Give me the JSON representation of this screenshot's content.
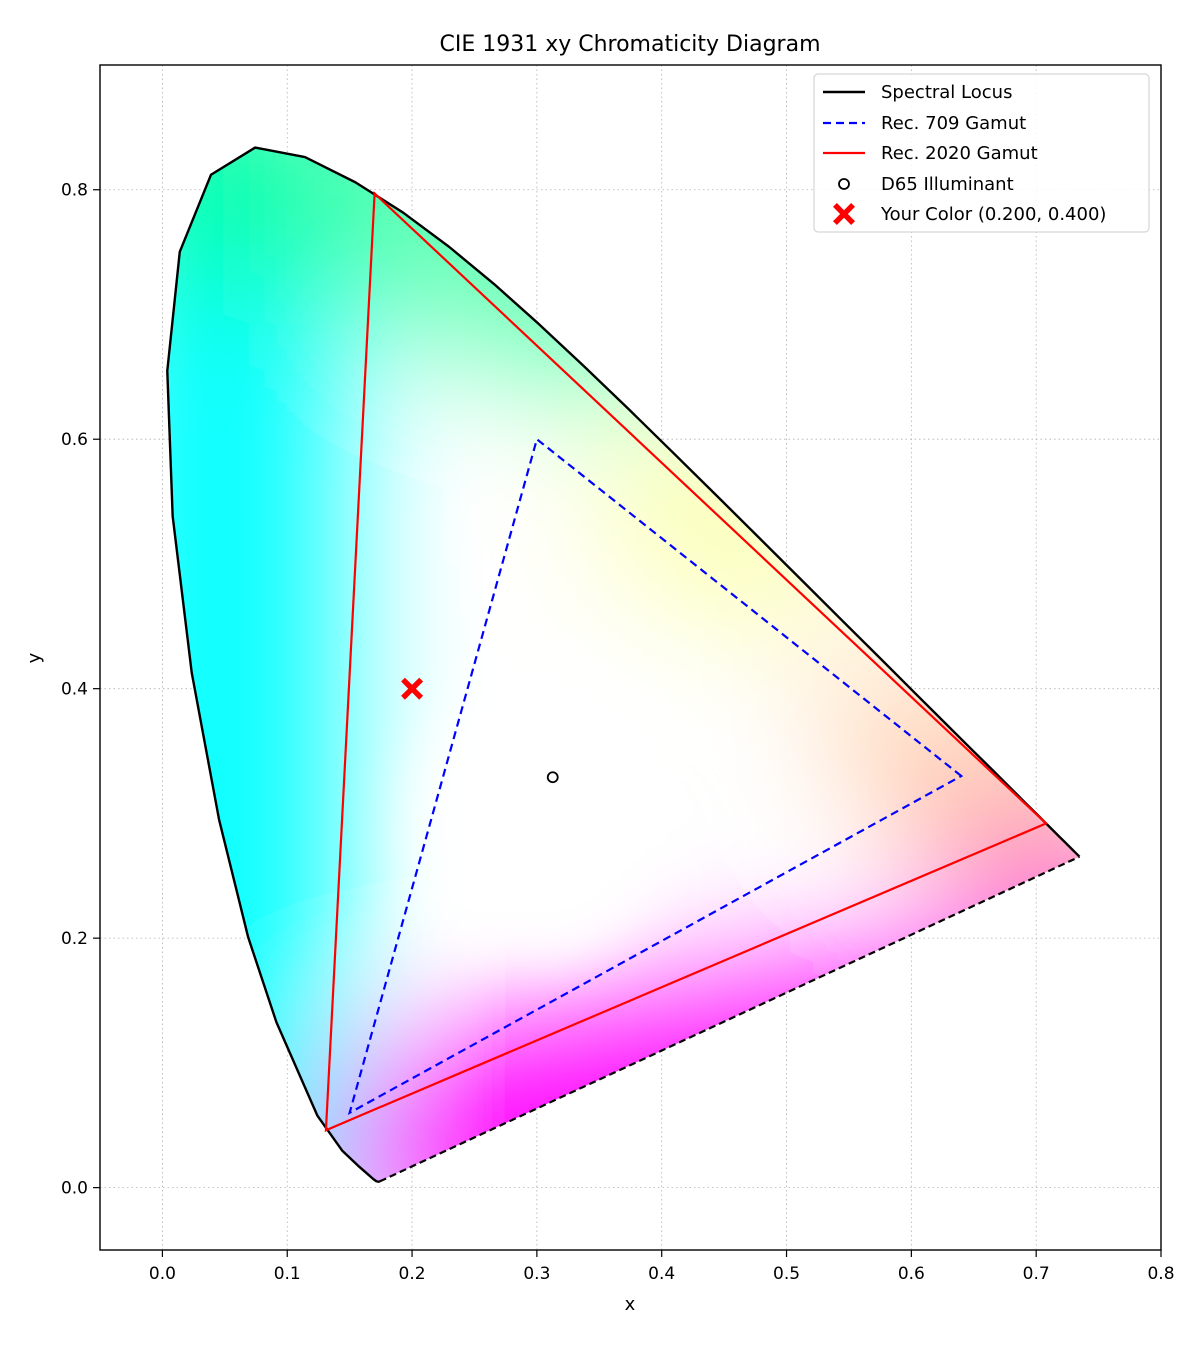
{
  "chart_data": {
    "type": "scatter",
    "title": "CIE 1931 xy Chromaticity Diagram",
    "xlabel": "x",
    "ylabel": "y",
    "xlim": [
      -0.05,
      0.8
    ],
    "ylim": [
      -0.05,
      0.9
    ],
    "xticks": [
      0.0,
      0.1,
      0.2,
      0.3,
      0.4,
      0.5,
      0.6,
      0.7,
      0.8
    ],
    "yticks": [
      0.0,
      0.2,
      0.4,
      0.6,
      0.8
    ],
    "xtick_labels": [
      "0.0",
      "0.1",
      "0.2",
      "0.3",
      "0.4",
      "0.5",
      "0.6",
      "0.7",
      "0.8"
    ],
    "ytick_labels": [
      "0.0",
      "0.2",
      "0.4",
      "0.6",
      "0.8"
    ],
    "grid": true,
    "legend_position": "top-right",
    "series": [
      {
        "name": "Spectral Locus",
        "kind": "line",
        "color": "#000000",
        "linestyle": "solid",
        "points": [
          [
            0.1741,
            0.005
          ],
          [
            0.1738,
            0.0049
          ],
          [
            0.1733,
            0.0048
          ],
          [
            0.1726,
            0.0048
          ],
          [
            0.1714,
            0.0051
          ],
          [
            0.1689,
            0.0069
          ],
          [
            0.1644,
            0.0109
          ],
          [
            0.1566,
            0.0177
          ],
          [
            0.144,
            0.0297
          ],
          [
            0.1241,
            0.0578
          ],
          [
            0.0913,
            0.1327
          ],
          [
            0.0687,
            0.2007
          ],
          [
            0.0454,
            0.295
          ],
          [
            0.0235,
            0.4127
          ],
          [
            0.0082,
            0.5384
          ],
          [
            0.0039,
            0.6548
          ],
          [
            0.0139,
            0.7502
          ],
          [
            0.0389,
            0.812
          ],
          [
            0.0743,
            0.8338
          ],
          [
            0.1142,
            0.8262
          ],
          [
            0.1547,
            0.8059
          ],
          [
            0.1929,
            0.7816
          ],
          [
            0.2296,
            0.7543
          ],
          [
            0.2658,
            0.7243
          ],
          [
            0.3016,
            0.6923
          ],
          [
            0.3373,
            0.6589
          ],
          [
            0.3731,
            0.6245
          ],
          [
            0.4087,
            0.5896
          ],
          [
            0.4441,
            0.5547
          ],
          [
            0.4788,
            0.5202
          ],
          [
            0.5125,
            0.4866
          ],
          [
            0.5448,
            0.4544
          ],
          [
            0.5752,
            0.4242
          ],
          [
            0.6029,
            0.3965
          ],
          [
            0.627,
            0.3725
          ],
          [
            0.6482,
            0.3514
          ],
          [
            0.6658,
            0.334
          ],
          [
            0.6801,
            0.3197
          ],
          [
            0.6915,
            0.3083
          ],
          [
            0.7006,
            0.2993
          ],
          [
            0.7079,
            0.292
          ],
          [
            0.714,
            0.2859
          ],
          [
            0.719,
            0.2809
          ],
          [
            0.723,
            0.277
          ],
          [
            0.726,
            0.274
          ],
          [
            0.7283,
            0.2717
          ],
          [
            0.73,
            0.27
          ],
          [
            0.7311,
            0.2689
          ],
          [
            0.732,
            0.268
          ],
          [
            0.7327,
            0.2673
          ],
          [
            0.7334,
            0.2666
          ],
          [
            0.734,
            0.266
          ],
          [
            0.7344,
            0.2656
          ],
          [
            0.7346,
            0.2654
          ],
          [
            0.7347,
            0.2653
          ]
        ]
      },
      {
        "name": "Rec. 709 Gamut",
        "kind": "polygon",
        "color": "#0000ff",
        "linestyle": "dashed",
        "points": [
          [
            0.64,
            0.33
          ],
          [
            0.3,
            0.6
          ],
          [
            0.15,
            0.06
          ]
        ]
      },
      {
        "name": "Rec. 2020 Gamut",
        "kind": "polygon",
        "color": "#ff0000",
        "linestyle": "solid",
        "points": [
          [
            0.708,
            0.292
          ],
          [
            0.17,
            0.797
          ],
          [
            0.131,
            0.046
          ]
        ]
      },
      {
        "name": "D65 Illuminant",
        "kind": "marker",
        "marker": "open-circle",
        "color": "#000000",
        "points": [
          [
            0.3127,
            0.329
          ]
        ]
      },
      {
        "name": "Your Color (0.200, 0.400)",
        "kind": "marker",
        "marker": "filled-x",
        "color": "#ff0000",
        "points": [
          [
            0.2,
            0.4
          ]
        ]
      }
    ],
    "purple_line": {
      "color": "#000000",
      "linestyle": "dashed",
      "points": [
        [
          0.1741,
          0.005
        ],
        [
          0.7347,
          0.2653
        ]
      ]
    }
  }
}
